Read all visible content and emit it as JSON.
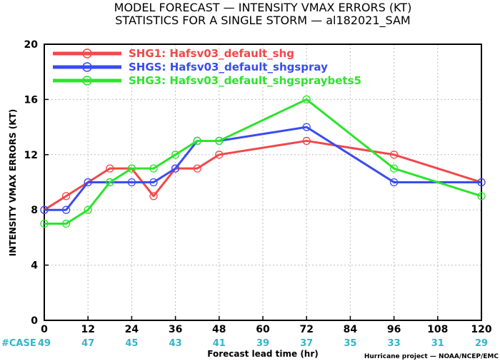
{
  "chart_data": {
    "type": "line",
    "title": "MODEL FORECAST — INTENSITY VMAX ERRORS (KT)",
    "subtitle": "STATISTICS FOR A SINGLE STORM — al182021_SAM",
    "xlabel": "Forecast lead time (hr)",
    "ylabel": "INTENSITY VMAX ERRORS (KT)",
    "xlim": [
      0,
      120
    ],
    "ylim": [
      0,
      20
    ],
    "x_ticks": [
      0,
      12,
      24,
      36,
      48,
      60,
      72,
      84,
      96,
      108,
      120
    ],
    "y_ticks": [
      0,
      4,
      8,
      12,
      16,
      20
    ],
    "grid": true,
    "legend_position": "top-left",
    "series": [
      {
        "name": "SHG1: Hafsv03_default_shg",
        "color": "#f0484a",
        "x": [
          0,
          6,
          12,
          18,
          24,
          30,
          36,
          42,
          48,
          72,
          96,
          120
        ],
        "y": [
          8,
          9,
          10,
          11,
          11,
          9,
          11,
          11,
          12,
          13,
          12,
          10
        ]
      },
      {
        "name": "SHGS: Hafsv03_default_shgspray",
        "color": "#3a4cf0",
        "x": [
          0,
          6,
          12,
          18,
          24,
          30,
          36,
          42,
          48,
          72,
          96,
          120
        ],
        "y": [
          8,
          8,
          10,
          10,
          10,
          10,
          11,
          13,
          13,
          14,
          10,
          10
        ]
      },
      {
        "name": "SHG3: Hafsv03_default_shgspraybets5",
        "color": "#2ce42c",
        "x": [
          0,
          6,
          12,
          18,
          24,
          30,
          36,
          42,
          48,
          72,
          96,
          120
        ],
        "y": [
          7,
          7,
          8,
          10,
          11,
          11,
          12,
          13,
          13,
          16,
          11,
          9
        ]
      }
    ],
    "case_label": "#CASE",
    "case_counts": [
      {
        "x": 0,
        "n": "49"
      },
      {
        "x": 12,
        "n": "47"
      },
      {
        "x": 24,
        "n": "45"
      },
      {
        "x": 36,
        "n": "43"
      },
      {
        "x": 48,
        "n": "41"
      },
      {
        "x": 60,
        "n": "39"
      },
      {
        "x": 72,
        "n": "37"
      },
      {
        "x": 84,
        "n": "35"
      },
      {
        "x": 96,
        "n": "33"
      },
      {
        "x": 108,
        "n": "31"
      },
      {
        "x": 120,
        "n": "29"
      }
    ],
    "credit": "Hurricane project — NOAA/NCEP/EMC"
  }
}
